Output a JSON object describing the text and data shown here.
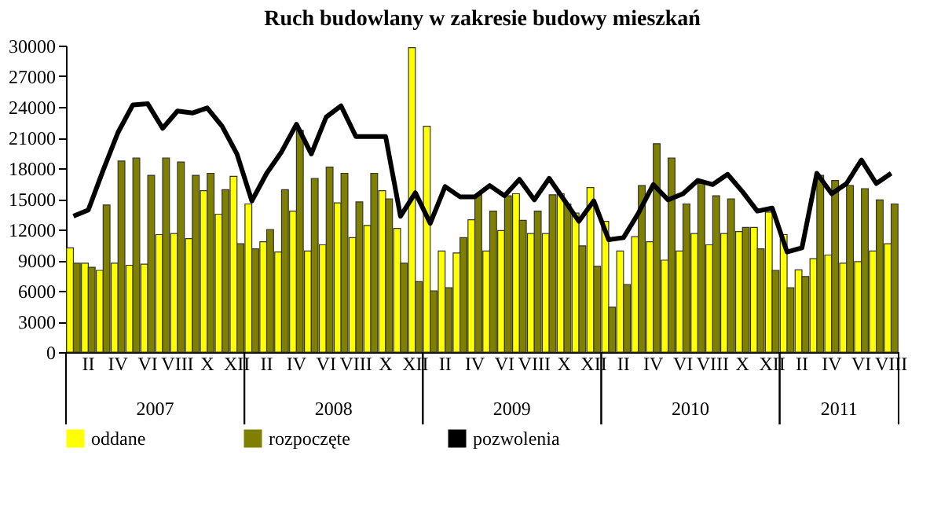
{
  "chart_data": {
    "type": "bar",
    "title": "Ruch budowlany w zakresie budowy mieszkań",
    "categories": [
      null,
      "II",
      null,
      "IV",
      null,
      "VI",
      null,
      "VIII",
      null,
      "X",
      null,
      "XII",
      null,
      "II",
      null,
      "IV",
      null,
      "VI",
      null,
      "VIII",
      null,
      "X",
      null,
      "XII",
      null,
      "II",
      null,
      "IV",
      null,
      "VI",
      null,
      "VIII",
      null,
      "X",
      null,
      "XII",
      null,
      "II",
      null,
      "IV",
      null,
      "VI",
      null,
      "VIII",
      null,
      "X",
      null,
      "XII",
      null,
      "II",
      null,
      "IV",
      null,
      "VI",
      null,
      "VIII"
    ],
    "series": [
      {
        "name": "oddane",
        "color": "#ffff00",
        "values": [
          10200,
          8700,
          8000,
          8700,
          8500,
          8600,
          11500,
          11600,
          11100,
          15800,
          13500,
          17200,
          14500,
          10800,
          9800,
          13800,
          9900,
          10500,
          14600,
          11200,
          12400,
          15800,
          12100,
          29800,
          22100,
          9900,
          9700,
          12950,
          9900,
          11900,
          15500,
          11600,
          11600,
          15500,
          13600,
          16100,
          12800,
          9900,
          11300,
          10800,
          9000,
          9900,
          11600,
          10500,
          11600,
          11800,
          12200,
          13700,
          11500,
          8050,
          9150,
          9500,
          8700,
          8850,
          9900,
          10600
        ]
      },
      {
        "name": "rozpoczęte",
        "color": "#808000",
        "values": [
          8700,
          8300,
          14400,
          18700,
          19000,
          17300,
          19000,
          18600,
          17300,
          17500,
          15900,
          10600,
          10100,
          12000,
          15900,
          21700,
          17000,
          18100,
          17500,
          14700,
          17500,
          15000,
          8700,
          6900,
          6000,
          6300,
          11200,
          15400,
          13800,
          15300,
          12900,
          13800,
          15400,
          14500,
          10400,
          8400,
          4400,
          6600,
          16300,
          20400,
          19000,
          14500,
          16500,
          15300,
          15000,
          12200,
          10100,
          8000,
          6300,
          7400,
          17300,
          16800,
          16300,
          16000,
          14900,
          14500
        ]
      },
      {
        "name": "pozwolenia",
        "type": "line",
        "color": "#000000",
        "values": [
          13300,
          13900,
          17800,
          21500,
          24200,
          24300,
          21900,
          23600,
          23400,
          23900,
          22100,
          19400,
          14800,
          17500,
          19600,
          22300,
          19400,
          23000,
          24100,
          21100,
          21100,
          21100,
          13300,
          15600,
          12600,
          16200,
          15200,
          15200,
          16300,
          15300,
          16900,
          14900,
          17000,
          14900,
          12800,
          14800,
          11000,
          11200,
          13600,
          16400,
          14900,
          15500,
          16800,
          16400,
          17400,
          15700,
          13800,
          14100,
          9800,
          10200,
          17500,
          15500,
          16500,
          18800,
          16500,
          17500
        ]
      }
    ],
    "annotations": [
      "2007",
      "2008",
      "2009",
      "2010",
      "2011"
    ],
    "ylim": [
      0,
      30000
    ],
    "yticks": [
      0,
      3000,
      6000,
      9000,
      12000,
      15000,
      18000,
      21000,
      24000,
      27000,
      30000
    ],
    "grid": false,
    "legend": "bottom"
  }
}
